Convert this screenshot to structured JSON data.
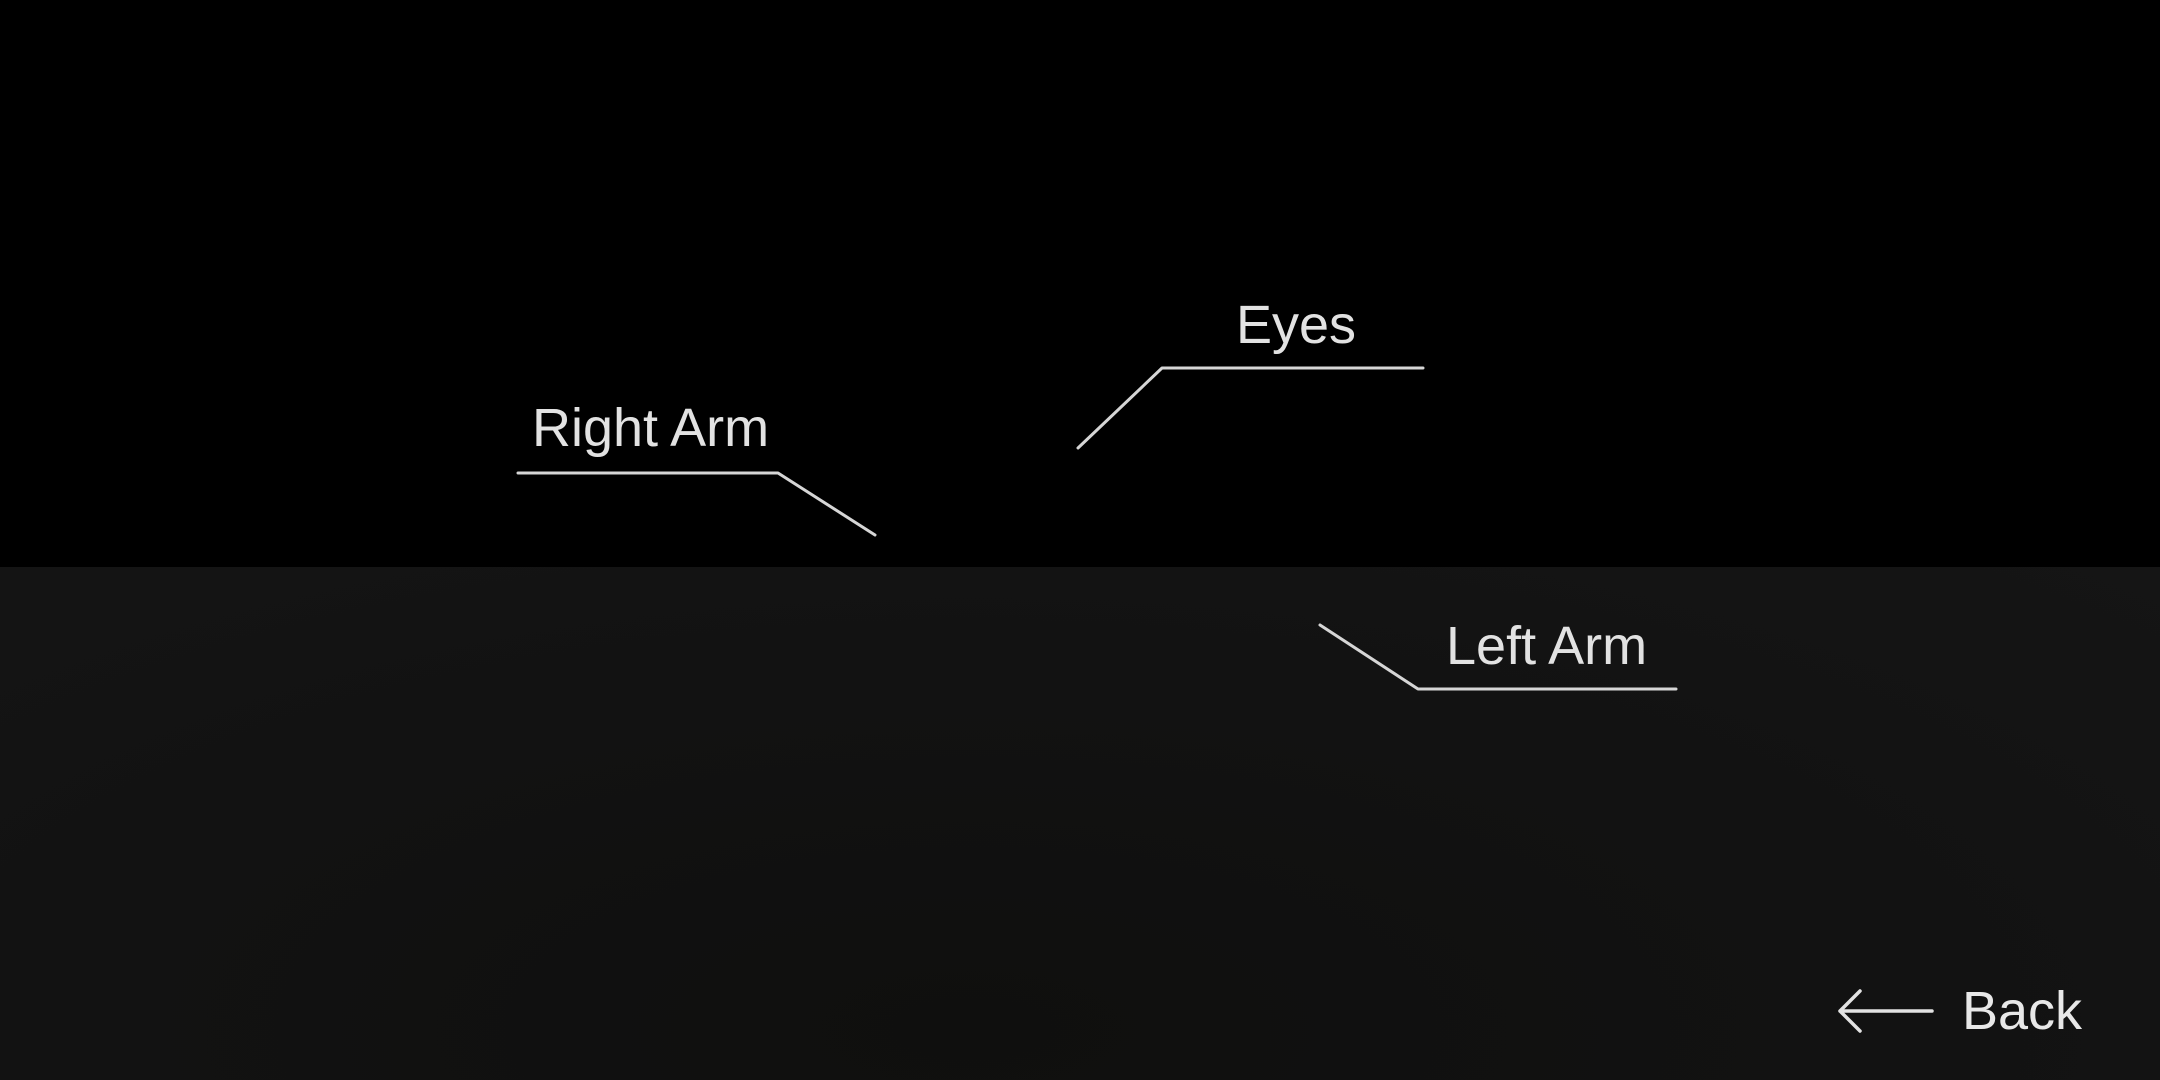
{
  "callouts": {
    "eyes": {
      "label": "Eyes"
    },
    "right_arm": {
      "label": "Right Arm"
    },
    "left_arm": {
      "label": "Left Arm"
    }
  },
  "navigation": {
    "back_label": "Back",
    "back_icon": "arrow-left-icon"
  },
  "colors": {
    "background_top": "#000000",
    "background_bottom": "#131313",
    "foreground": "#e2e2e2"
  }
}
